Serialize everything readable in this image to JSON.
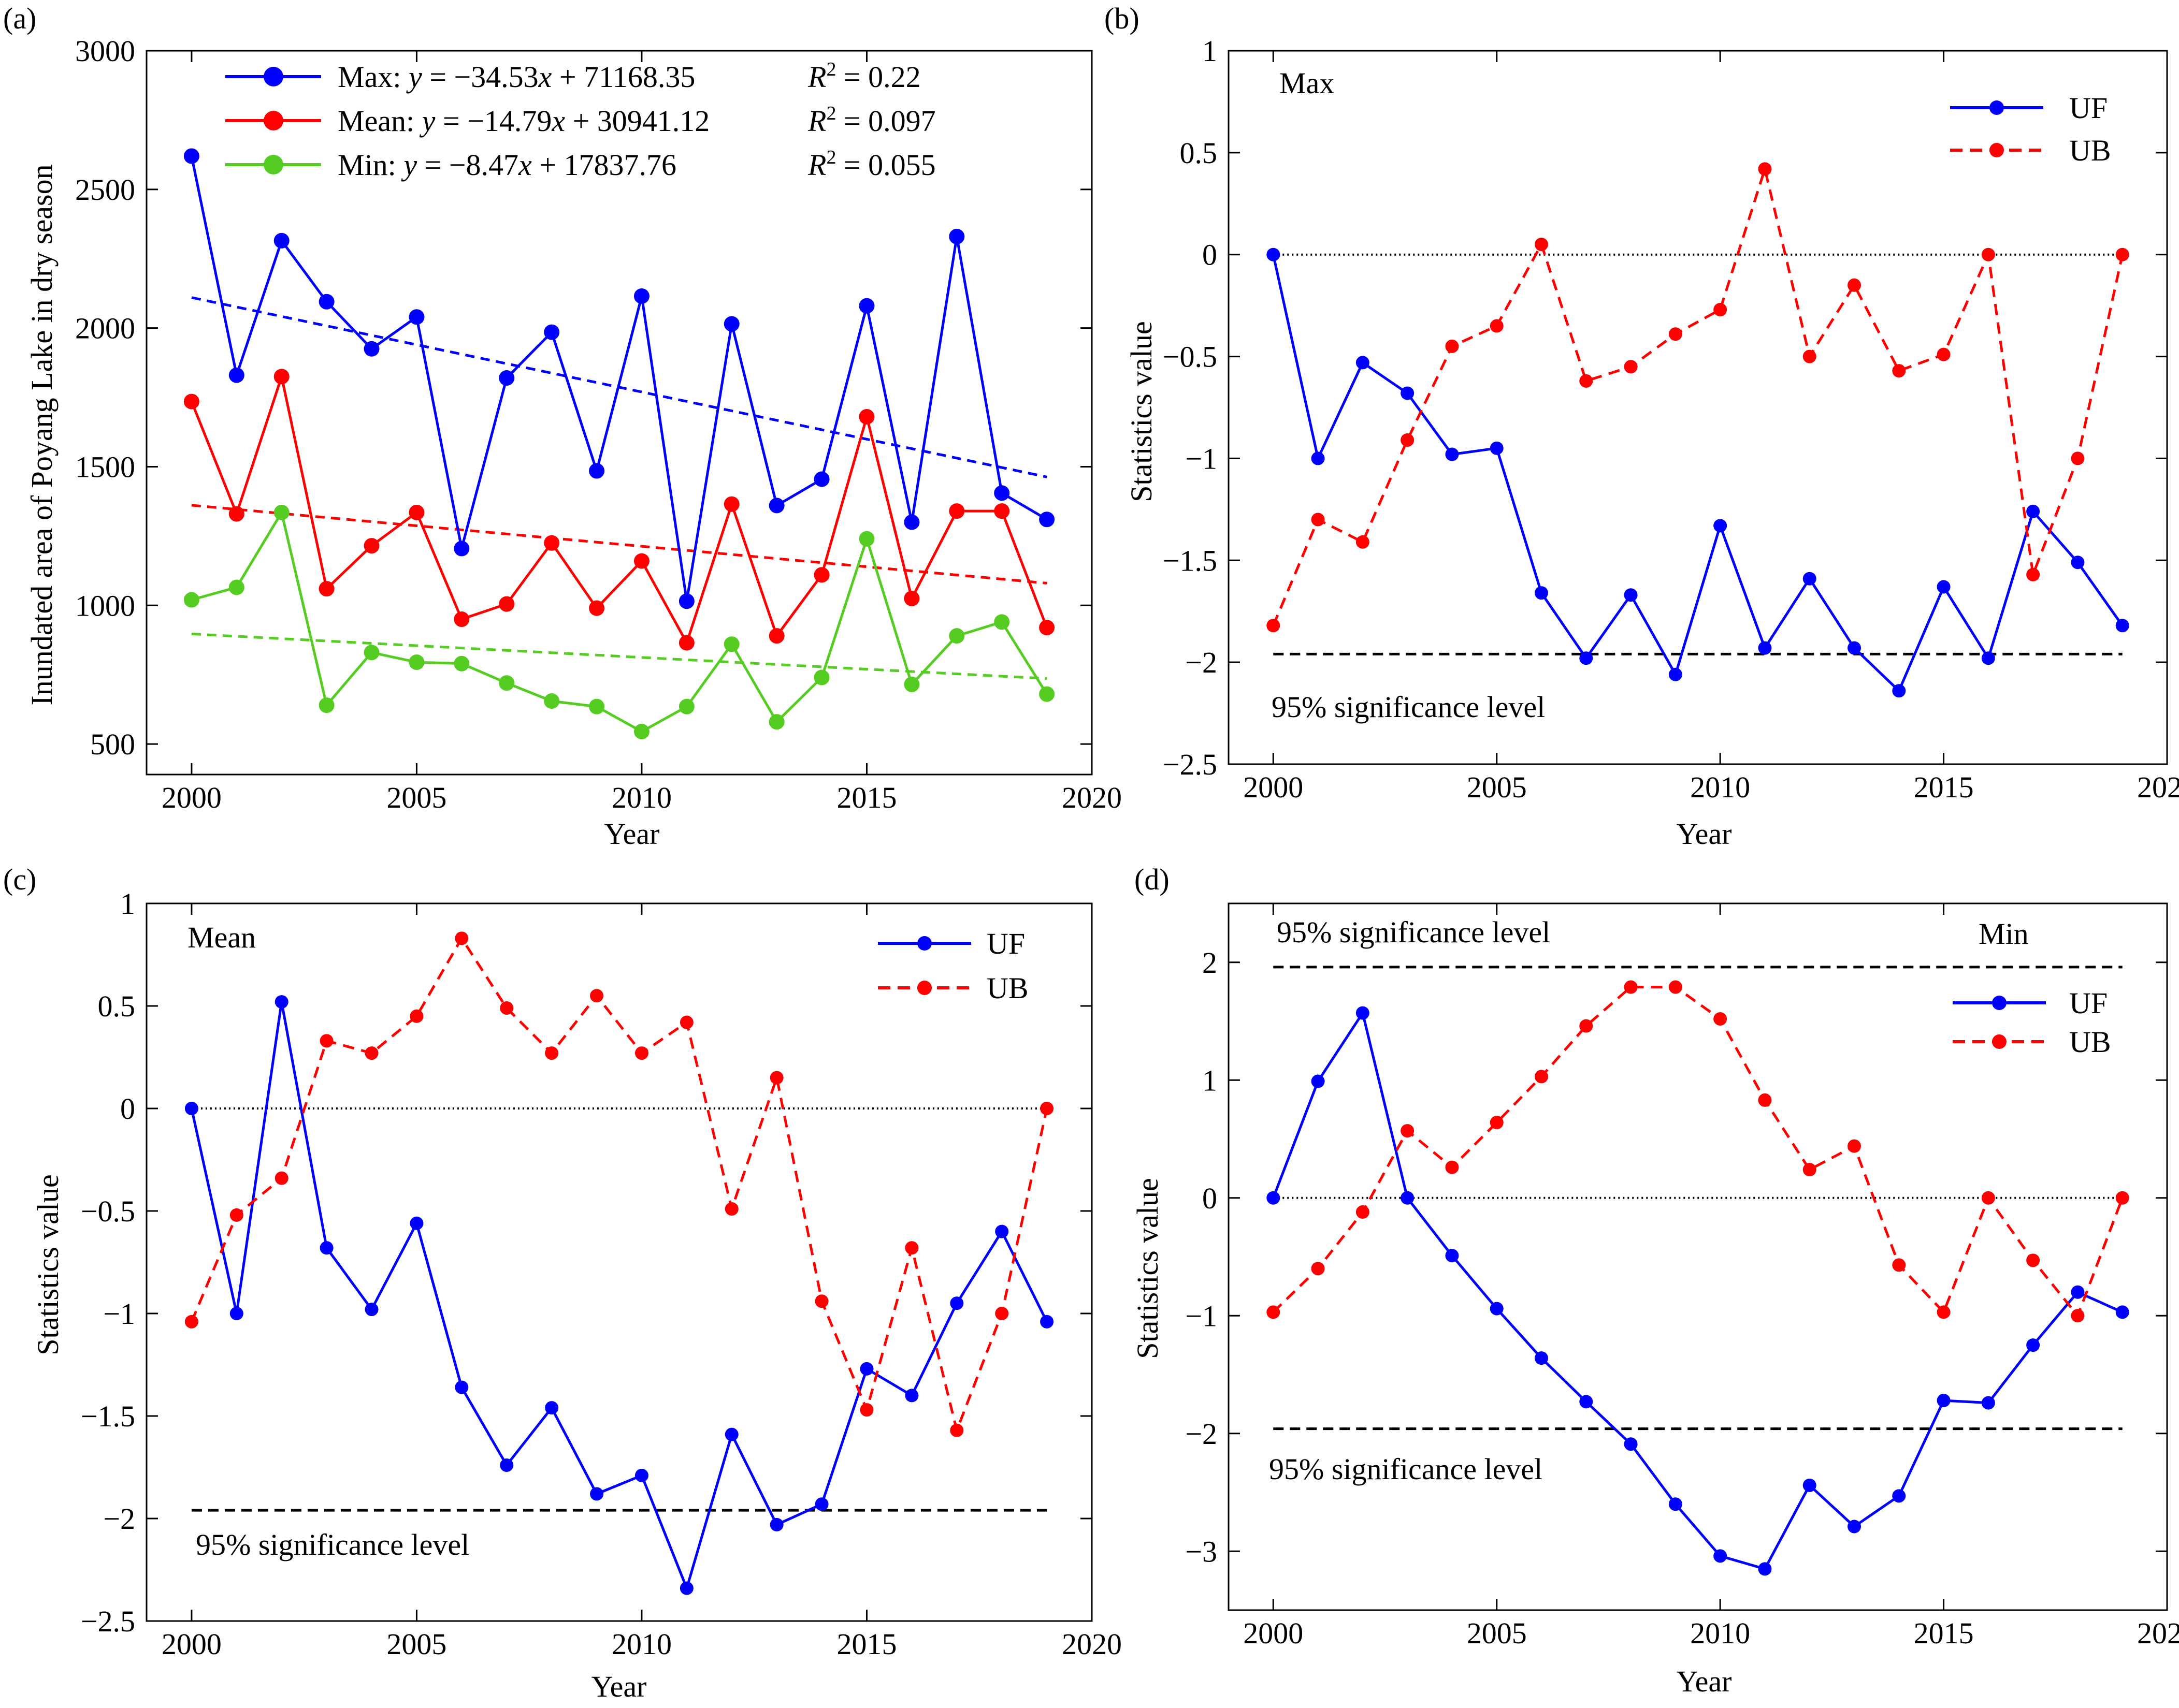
{
  "colors": {
    "blue": "#0000ff",
    "red": "#ff0000",
    "green": "#55cc22",
    "black": "#000000"
  },
  "chart_data": [
    {
      "id": "a",
      "panel_label": "(a)",
      "type": "line",
      "xlabel": "Year",
      "ylabel": "Inundated area of Poyang Lake in dry season",
      "xlim": [
        1999,
        2020
      ],
      "ylim": [
        390,
        3000
      ],
      "xticks": [
        2000,
        2005,
        2010,
        2015,
        2020
      ],
      "yticks": [
        500,
        1000,
        1500,
        2000,
        2500,
        3000
      ],
      "x": [
        2000,
        2001,
        2002,
        2003,
        2004,
        2005,
        2006,
        2007,
        2008,
        2009,
        2010,
        2011,
        2012,
        2013,
        2014,
        2015,
        2016,
        2017,
        2018,
        2019
      ],
      "series": [
        {
          "name": "Max",
          "color": "#0000ff",
          "values": [
            2620,
            1830,
            2315,
            2095,
            1925,
            2040,
            1205,
            1820,
            1985,
            1485,
            2115,
            1015,
            2015,
            1360,
            1455,
            2080,
            1300,
            2330,
            1405,
            1310
          ]
        },
        {
          "name": "Mean",
          "color": "#ff0000",
          "values": [
            1735,
            1330,
            1825,
            1060,
            1215,
            1335,
            950,
            1005,
            1225,
            990,
            1160,
            865,
            1365,
            890,
            1110,
            1680,
            1025,
            1340,
            1340,
            920
          ]
        },
        {
          "name": "Min",
          "color": "#55cc22",
          "values": [
            1020,
            1065,
            1335,
            640,
            830,
            795,
            790,
            720,
            655,
            635,
            545,
            635,
            860,
            580,
            740,
            1240,
            715,
            890,
            940,
            680
          ]
        }
      ],
      "trend_lines": [
        {
          "series": "Max",
          "color": "#0000ff",
          "x": [
            2000,
            2019
          ],
          "y": [
            2110,
            1463
          ]
        },
        {
          "series": "Mean",
          "color": "#ff0000",
          "x": [
            2000,
            2019
          ],
          "y": [
            1361,
            1080
          ]
        },
        {
          "series": "Min",
          "color": "#55cc22",
          "x": [
            2000,
            2019
          ],
          "y": [
            897,
            736
          ]
        }
      ],
      "legend": [
        {
          "name": "Max:",
          "color": "#0000ff",
          "eq_pre": "y",
          "eq_post": " = −34.53",
          "eq_x": "x",
          "eq_const": " + 71168.35",
          "r_sym": "R",
          "r_sup": "2",
          "r_val": " = 0.22"
        },
        {
          "name": "Mean:",
          "color": "#ff0000",
          "eq_pre": "y",
          "eq_post": " = −14.79",
          "eq_x": "x",
          "eq_const": " + 30941.12",
          "r_sym": "R",
          "r_sup": "2",
          "r_val": " = 0.097"
        },
        {
          "name": "Min:",
          "color": "#55cc22",
          "eq_pre": "y",
          "eq_post": " = −8.47",
          "eq_x": "x",
          "eq_const": " + 17837.76",
          "r_sym": "R",
          "r_sup": "2",
          "r_val": " = 0.055"
        }
      ]
    },
    {
      "id": "b",
      "panel_label": "(b)",
      "type": "line",
      "inner_label": "Max",
      "xlabel": "Year",
      "ylabel": "Statistics value",
      "xlim": [
        1999,
        2020
      ],
      "ylim": [
        -2.5,
        1
      ],
      "xticks": [
        2000,
        2005,
        2010,
        2015,
        2020
      ],
      "yticks": [
        1,
        0.5,
        0,
        -0.5,
        -1,
        -1.5,
        -2,
        -2.5
      ],
      "ytick_labels": [
        "1",
        "0.5",
        "0",
        "−0.5",
        "−1",
        "−1.5",
        "−2",
        "−2.5"
      ],
      "x": [
        2000,
        2001,
        2002,
        2003,
        2004,
        2005,
        2006,
        2007,
        2008,
        2009,
        2010,
        2011,
        2012,
        2013,
        2014,
        2015,
        2016,
        2017,
        2018,
        2019
      ],
      "series": [
        {
          "name": "UF",
          "color": "#0000ff",
          "dashed": false,
          "values": [
            0,
            -1.0,
            -0.53,
            -0.68,
            -0.98,
            -0.95,
            -1.66,
            -1.98,
            -1.67,
            -2.06,
            -1.33,
            -1.93,
            -1.59,
            -1.93,
            -2.14,
            -1.63,
            -1.98,
            -1.26,
            -1.51,
            -1.82
          ]
        },
        {
          "name": "UB",
          "color": "#ff0000",
          "dashed": true,
          "values": [
            -1.82,
            -1.3,
            -1.41,
            -0.91,
            -0.45,
            -0.35,
            0.05,
            -0.62,
            -0.55,
            -0.39,
            -0.27,
            0.42,
            -0.5,
            -0.15,
            -0.57,
            -0.49,
            0,
            -1.57,
            -1.0,
            0
          ]
        }
      ],
      "sig_lines": [
        -1.96
      ],
      "sig_label": "95% significance level"
    },
    {
      "id": "c",
      "panel_label": "(c)",
      "type": "line",
      "inner_label": "Mean",
      "xlabel": "Year",
      "ylabel": "Statistics value",
      "xlim": [
        1999,
        2020
      ],
      "ylim": [
        -2.5,
        1
      ],
      "xticks": [
        2000,
        2005,
        2010,
        2015,
        2020
      ],
      "yticks": [
        1,
        0.5,
        0,
        -0.5,
        -1,
        -1.5,
        -2,
        -2.5
      ],
      "ytick_labels": [
        "1",
        "0.5",
        "0",
        "−0.5",
        "−1",
        "−1.5",
        "−2",
        "−2.5"
      ],
      "x": [
        2000,
        2001,
        2002,
        2003,
        2004,
        2005,
        2006,
        2007,
        2008,
        2009,
        2010,
        2011,
        2012,
        2013,
        2014,
        2015,
        2016,
        2017,
        2018,
        2019
      ],
      "series": [
        {
          "name": "UF",
          "color": "#0000ff",
          "dashed": false,
          "values": [
            0,
            -1.0,
            0.52,
            -0.68,
            -0.98,
            -0.56,
            -1.36,
            -1.74,
            -1.46,
            -1.88,
            -1.79,
            -2.34,
            -1.59,
            -2.03,
            -1.93,
            -1.27,
            -1.4,
            -0.95,
            -0.6,
            -1.04
          ]
        },
        {
          "name": "UB",
          "color": "#ff0000",
          "dashed": true,
          "values": [
            -1.04,
            -0.52,
            -0.34,
            0.33,
            0.27,
            0.45,
            0.83,
            0.49,
            0.27,
            0.55,
            0.27,
            0.42,
            -0.49,
            0.15,
            -0.94,
            -1.47,
            -0.68,
            -1.57,
            -1.0,
            0
          ]
        }
      ],
      "sig_lines": [
        -1.96
      ],
      "sig_label": "95% significance level"
    },
    {
      "id": "d",
      "panel_label": "(d)",
      "type": "line",
      "inner_label": "Min",
      "xlabel": "Year",
      "ylabel": "Statistics value",
      "xlim": [
        1999,
        2020
      ],
      "ylim": [
        -3.5,
        2.5
      ],
      "xticks": [
        2000,
        2005,
        2010,
        2015,
        2020
      ],
      "yticks": [
        2,
        1,
        0,
        -1,
        -2,
        -3
      ],
      "ytick_labels": [
        "2",
        "1",
        "0",
        "−1",
        "−2",
        "−3"
      ],
      "x": [
        2000,
        2001,
        2002,
        2003,
        2004,
        2005,
        2006,
        2007,
        2008,
        2009,
        2010,
        2011,
        2012,
        2013,
        2014,
        2015,
        2016,
        2017,
        2018,
        2019
      ],
      "series": [
        {
          "name": "UF",
          "color": "#0000ff",
          "dashed": false,
          "values": [
            0,
            0.99,
            1.57,
            0,
            -0.49,
            -0.94,
            -1.36,
            -1.73,
            -2.09,
            -2.6,
            -3.04,
            -3.15,
            -2.44,
            -2.79,
            -2.53,
            -1.72,
            -1.74,
            -1.25,
            -0.8,
            -0.97
          ]
        },
        {
          "name": "UB",
          "color": "#ff0000",
          "dashed": true,
          "values": [
            -0.97,
            -0.6,
            -0.12,
            0.57,
            0.26,
            0.64,
            1.03,
            1.46,
            1.79,
            1.79,
            1.52,
            0.83,
            0.24,
            0.44,
            -0.57,
            -0.97,
            0,
            -0.53,
            -1.0,
            0
          ]
        }
      ],
      "sig_lines": [
        1.96,
        -1.96
      ],
      "sig_label": "95% significance level"
    }
  ]
}
